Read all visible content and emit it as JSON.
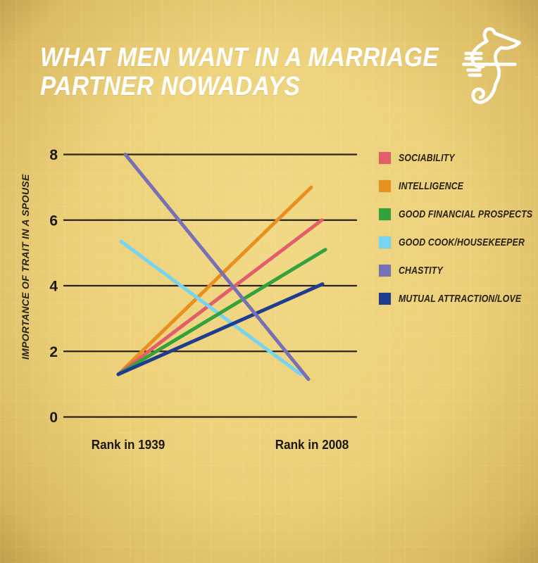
{
  "page": {
    "background_color": "#eed178",
    "text_color": "#1e1912",
    "title_color": "#ffffff"
  },
  "header": {
    "title_line1": "WHAT MEN WANT IN A MARRIAGE",
    "title_line2": "PARTNER NOWADAYS",
    "logo_icon": "seahorse-line-art"
  },
  "chart_data": {
    "type": "line",
    "subtype": "slope-graph",
    "title": "What men want in a marriage partner nowadays",
    "ylabel": "IMPORTANCE OF TRAIT IN A SPOUSE",
    "xlabel": "",
    "categories": [
      "Rank in 1939",
      "Rank in 2008"
    ],
    "yticks": [
      8,
      6,
      4,
      2,
      0
    ],
    "ylim": [
      0,
      8
    ],
    "grid": "horizontal-only",
    "gridline_color": "#29231a",
    "legend_position": "right",
    "series": [
      {
        "name": "SOCIABILITY",
        "color": "#e05f68",
        "values": [
          1.3,
          6.0
        ]
      },
      {
        "name": "INTELLIGENCE",
        "color": "#e78f1f",
        "values": [
          1.3,
          7.0
        ]
      },
      {
        "name": "GOOD FINANCIAL PROSPECTS",
        "color": "#33a23c",
        "values": [
          1.3,
          5.1
        ]
      },
      {
        "name": "GOOD COOK/HOUSEKEEPER",
        "color": "#76d4f1",
        "values": [
          5.35,
          1.3
        ]
      },
      {
        "name": "CHASTITY",
        "color": "#7770b5",
        "values": [
          8.0,
          1.15
        ]
      },
      {
        "name": "MUTUAL ATTRACTION/LOVE",
        "color": "#1f3d8e",
        "values": [
          1.3,
          4.05
        ]
      }
    ]
  }
}
